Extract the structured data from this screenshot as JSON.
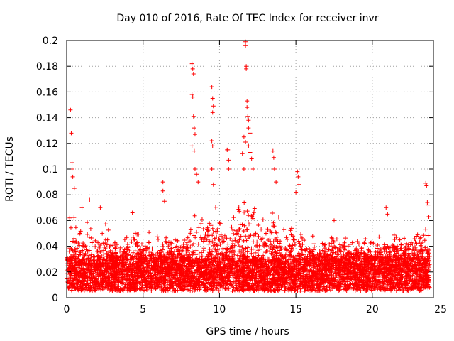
{
  "chart_data": {
    "type": "scatter",
    "title": "Day 010 of 2016, Rate Of TEC Index for receiver invr",
    "xlabel": "GPS time / hours",
    "ylabel": "ROTI / TECUs",
    "xlim": [
      0,
      24
    ],
    "ylim": [
      0,
      0.2
    ],
    "grid": true,
    "marker": "+",
    "series_color": "#ff0000",
    "x_ticks": [
      0,
      5,
      10,
      15,
      20,
      25
    ],
    "x_tick_labels": [
      "0",
      "5",
      "10",
      "15",
      "20",
      "25"
    ],
    "y_ticks": [
      0,
      0.02,
      0.04,
      0.06,
      0.08,
      0.1,
      0.12,
      0.14,
      0.16,
      0.18,
      0.2
    ],
    "y_tick_labels": [
      "0",
      "0.02",
      "0.04",
      "0.06",
      "0.08",
      "0.1",
      "0.12",
      "0.14",
      "0.16",
      "0.18",
      "0.2"
    ],
    "density_profile": [
      {
        "x": 0.0,
        "high": 0.04
      },
      {
        "x": 0.5,
        "high": 0.06
      },
      {
        "x": 1.0,
        "high": 0.05
      },
      {
        "x": 1.5,
        "high": 0.065
      },
      {
        "x": 2.0,
        "high": 0.05
      },
      {
        "x": 2.5,
        "high": 0.06
      },
      {
        "x": 3.0,
        "high": 0.045
      },
      {
        "x": 3.5,
        "high": 0.045
      },
      {
        "x": 4.0,
        "high": 0.045
      },
      {
        "x": 4.5,
        "high": 0.055
      },
      {
        "x": 5.0,
        "high": 0.045
      },
      {
        "x": 5.5,
        "high": 0.05
      },
      {
        "x": 6.0,
        "high": 0.045
      },
      {
        "x": 6.5,
        "high": 0.045
      },
      {
        "x": 7.0,
        "high": 0.045
      },
      {
        "x": 7.5,
        "high": 0.045
      },
      {
        "x": 8.0,
        "high": 0.055
      },
      {
        "x": 8.5,
        "high": 0.07
      },
      {
        "x": 9.0,
        "high": 0.06
      },
      {
        "x": 9.5,
        "high": 0.07
      },
      {
        "x": 10.0,
        "high": 0.06
      },
      {
        "x": 10.5,
        "high": 0.06
      },
      {
        "x": 11.0,
        "high": 0.065
      },
      {
        "x": 11.5,
        "high": 0.075
      },
      {
        "x": 12.0,
        "high": 0.075
      },
      {
        "x": 12.5,
        "high": 0.06
      },
      {
        "x": 13.0,
        "high": 0.055
      },
      {
        "x": 13.5,
        "high": 0.07
      },
      {
        "x": 14.0,
        "high": 0.06
      },
      {
        "x": 14.5,
        "high": 0.055
      },
      {
        "x": 15.0,
        "high": 0.065
      },
      {
        "x": 15.5,
        "high": 0.05
      },
      {
        "x": 16.0,
        "high": 0.045
      },
      {
        "x": 16.5,
        "high": 0.045
      },
      {
        "x": 17.0,
        "high": 0.045
      },
      {
        "x": 17.5,
        "high": 0.05
      },
      {
        "x": 18.0,
        "high": 0.05
      },
      {
        "x": 18.5,
        "high": 0.045
      },
      {
        "x": 19.0,
        "high": 0.045
      },
      {
        "x": 19.5,
        "high": 0.045
      },
      {
        "x": 20.0,
        "high": 0.045
      },
      {
        "x": 20.5,
        "high": 0.045
      },
      {
        "x": 21.0,
        "high": 0.05
      },
      {
        "x": 21.5,
        "high": 0.045
      },
      {
        "x": 22.0,
        "high": 0.045
      },
      {
        "x": 22.5,
        "high": 0.045
      },
      {
        "x": 23.0,
        "high": 0.05
      },
      {
        "x": 23.5,
        "high": 0.05
      }
    ],
    "base_range": [
      0.005,
      0.03
    ],
    "points_per_hour": 260,
    "spikes": [
      {
        "x": 0.2,
        "y": 0.062
      },
      {
        "x": 0.25,
        "y": 0.146
      },
      {
        "x": 0.3,
        "y": 0.128
      },
      {
        "x": 0.35,
        "y": 0.105
      },
      {
        "x": 0.35,
        "y": 0.1
      },
      {
        "x": 0.4,
        "y": 0.094
      },
      {
        "x": 0.5,
        "y": 0.085
      },
      {
        "x": 1.0,
        "y": 0.07
      },
      {
        "x": 1.5,
        "y": 0.076
      },
      {
        "x": 2.2,
        "y": 0.07
      },
      {
        "x": 4.3,
        "y": 0.066
      },
      {
        "x": 6.3,
        "y": 0.09
      },
      {
        "x": 6.3,
        "y": 0.083
      },
      {
        "x": 6.4,
        "y": 0.075
      },
      {
        "x": 8.2,
        "y": 0.182
      },
      {
        "x": 8.25,
        "y": 0.178
      },
      {
        "x": 8.3,
        "y": 0.174
      },
      {
        "x": 8.2,
        "y": 0.158
      },
      {
        "x": 8.25,
        "y": 0.156
      },
      {
        "x": 8.3,
        "y": 0.141
      },
      {
        "x": 8.35,
        "y": 0.132
      },
      {
        "x": 8.4,
        "y": 0.127
      },
      {
        "x": 8.2,
        "y": 0.118
      },
      {
        "x": 8.35,
        "y": 0.114
      },
      {
        "x": 8.4,
        "y": 0.1
      },
      {
        "x": 8.5,
        "y": 0.096
      },
      {
        "x": 8.6,
        "y": 0.09
      },
      {
        "x": 9.5,
        "y": 0.164
      },
      {
        "x": 9.55,
        "y": 0.155
      },
      {
        "x": 9.6,
        "y": 0.149
      },
      {
        "x": 9.55,
        "y": 0.144
      },
      {
        "x": 9.5,
        "y": 0.122
      },
      {
        "x": 9.55,
        "y": 0.118
      },
      {
        "x": 9.5,
        "y": 0.1
      },
      {
        "x": 9.6,
        "y": 0.088
      },
      {
        "x": 10.5,
        "y": 0.115
      },
      {
        "x": 10.55,
        "y": 0.115
      },
      {
        "x": 10.6,
        "y": 0.107
      },
      {
        "x": 10.6,
        "y": 0.1
      },
      {
        "x": 11.7,
        "y": 0.199
      },
      {
        "x": 11.7,
        "y": 0.196
      },
      {
        "x": 11.75,
        "y": 0.18
      },
      {
        "x": 11.75,
        "y": 0.178
      },
      {
        "x": 11.8,
        "y": 0.153
      },
      {
        "x": 11.8,
        "y": 0.148
      },
      {
        "x": 11.85,
        "y": 0.141
      },
      {
        "x": 11.9,
        "y": 0.138
      },
      {
        "x": 11.9,
        "y": 0.132
      },
      {
        "x": 12.0,
        "y": 0.128
      },
      {
        "x": 11.6,
        "y": 0.125
      },
      {
        "x": 11.7,
        "y": 0.121
      },
      {
        "x": 11.9,
        "y": 0.118
      },
      {
        "x": 12.0,
        "y": 0.113
      },
      {
        "x": 12.1,
        "y": 0.108
      },
      {
        "x": 12.2,
        "y": 0.1
      },
      {
        "x": 11.5,
        "y": 0.112
      },
      {
        "x": 11.6,
        "y": 0.1
      },
      {
        "x": 13.5,
        "y": 0.114
      },
      {
        "x": 13.55,
        "y": 0.109
      },
      {
        "x": 13.6,
        "y": 0.1
      },
      {
        "x": 13.7,
        "y": 0.09
      },
      {
        "x": 15.1,
        "y": 0.098
      },
      {
        "x": 15.15,
        "y": 0.094
      },
      {
        "x": 15.2,
        "y": 0.088
      },
      {
        "x": 15.0,
        "y": 0.082
      },
      {
        "x": 17.5,
        "y": 0.06
      },
      {
        "x": 20.9,
        "y": 0.07
      },
      {
        "x": 21.0,
        "y": 0.065
      },
      {
        "x": 23.5,
        "y": 0.089
      },
      {
        "x": 23.55,
        "y": 0.087
      },
      {
        "x": 23.6,
        "y": 0.074
      },
      {
        "x": 23.65,
        "y": 0.072
      },
      {
        "x": 23.7,
        "y": 0.063
      }
    ]
  }
}
